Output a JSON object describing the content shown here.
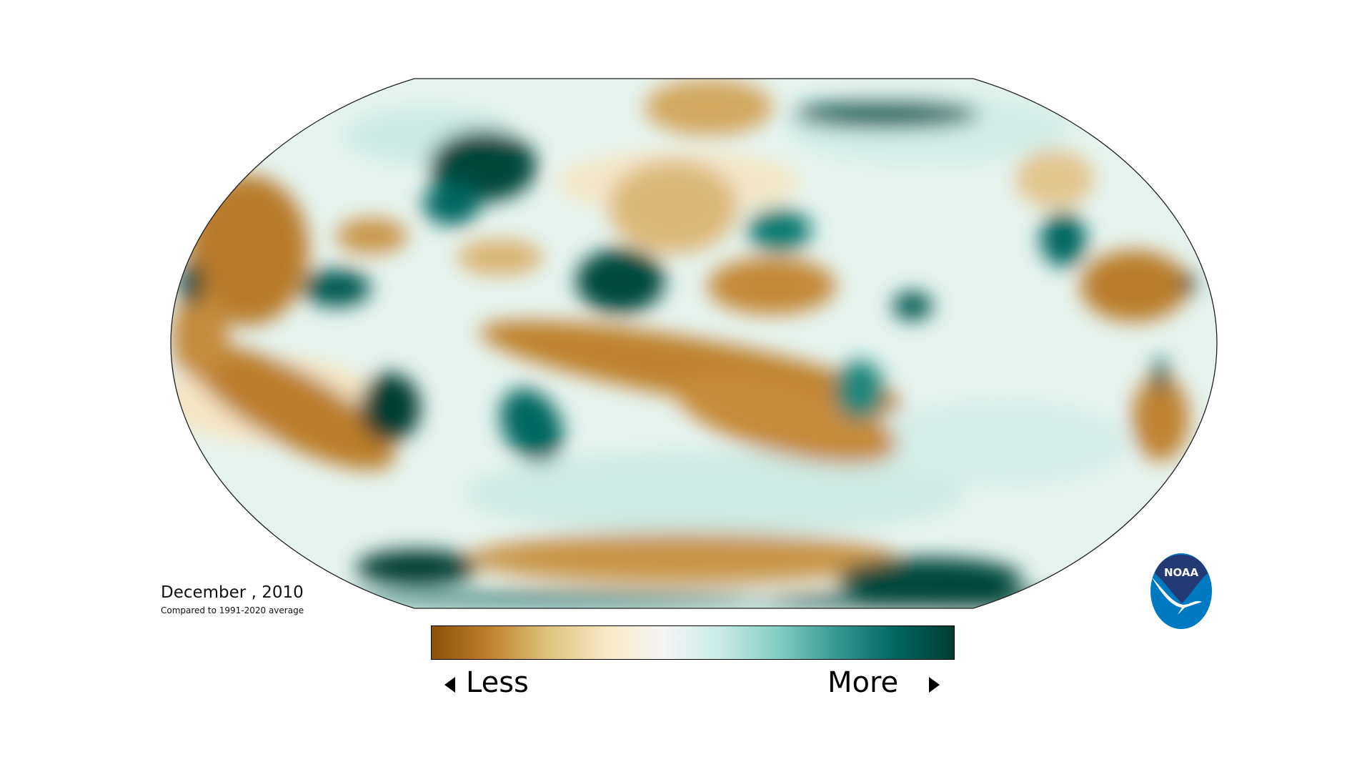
{
  "map": {
    "title": "December , 2010",
    "subtitle": "Compared to 1991-2020 average",
    "projection": "Robinson",
    "variable": "precipitation anomaly"
  },
  "legend": {
    "less_label": "Less",
    "more_label": "More",
    "colors": [
      "#8c510a",
      "#bf812d",
      "#dfc27d",
      "#f6e8c3",
      "#f5f5f5",
      "#c7eae5",
      "#80cdc1",
      "#35978f",
      "#01665e",
      "#003c30"
    ]
  },
  "logo": {
    "text": "NOAA",
    "navy": "#233a75",
    "blue": "#0079c3"
  }
}
